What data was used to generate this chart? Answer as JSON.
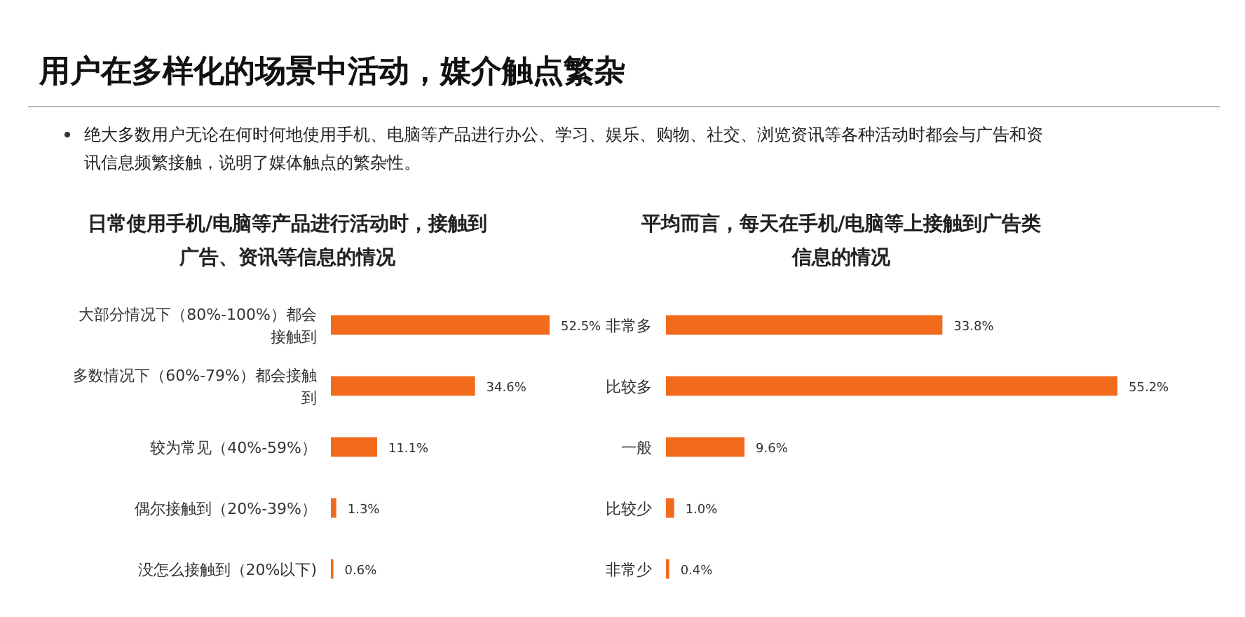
{
  "chart_data": [
    {
      "type": "other",
      "title": "用户在多样化的场景中活动，媒介触点繁杂",
      "subtitle": "绝大多数用户无论在何时何地使用手机、电脑等产品进行办公、学习、娱乐、购物、社交、浏览资讯等各种活动时都会与广告和资讯信息频繁接触，说明了媒体触点的繁杂性。"
    },
    {
      "type": "bar",
      "orientation": "horizontal",
      "title": "日常使用手机/电脑等产品进行活动时，接触到广告、资讯等信息的情况",
      "categories": [
        "大部分情况下（80%-100%）都会接触到",
        "多数情况下（60%-79%）都会接触到",
        "较为常见（40%-59%）",
        "偶尔接触到（20%-39%）",
        "没怎么接触到（20%以下)"
      ],
      "values": [
        52.5,
        34.6,
        11.1,
        1.3,
        0.6
      ],
      "value_labels": [
        "52.5%",
        "34.6%",
        "11.1%",
        "1.3%",
        "0.6%"
      ],
      "color": "#f26b1d",
      "tick_labels": "y"
    },
    {
      "type": "bar",
      "orientation": "horizontal",
      "title": "平均而言，每天在手机/电脑等上接触到广告类信息的情况",
      "categories": [
        "非常多",
        "比较多",
        "一般",
        "比较少",
        "非常少"
      ],
      "values": [
        33.8,
        55.2,
        9.6,
        1.0,
        0.4
      ],
      "value_labels": [
        "33.8%",
        "55.2%",
        "9.6%",
        "1.0%",
        "0.4%"
      ],
      "color": "#f26b1d",
      "tick_labels": "y"
    }
  ]
}
